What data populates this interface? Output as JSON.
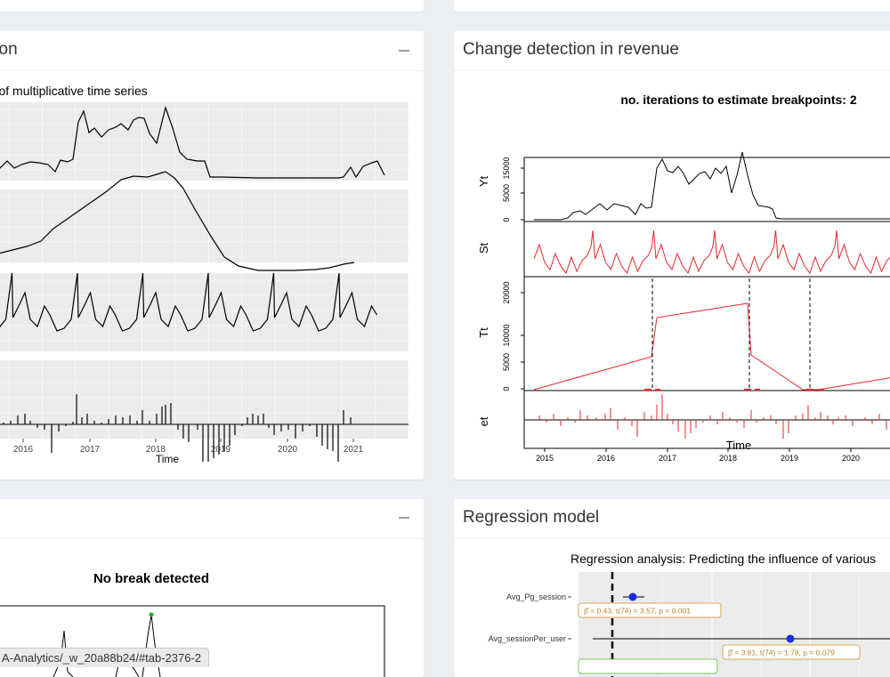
{
  "panels": {
    "decomposition": {
      "title": "Decomposition",
      "plot_title": "Decomposition of multiplicative time series",
      "x_label": "Time",
      "x_ticks": [
        "2016",
        "2017",
        "2018",
        "2019",
        "2020",
        "2021"
      ]
    },
    "change_detection": {
      "title": "Change detection in revenue",
      "plot_title": "no. iterations to estimate breakpoints: 2",
      "x_label": "Time",
      "x_ticks": [
        "2015",
        "2016",
        "2017",
        "2018",
        "2019",
        "2020"
      ],
      "rows": [
        {
          "label": "Yt",
          "ticks": [
            "0",
            "5000",
            "15000"
          ]
        },
        {
          "label": "St",
          "ticks": []
        },
        {
          "label": "Tt",
          "ticks": [
            "0",
            "5000",
            "10000",
            "20000"
          ]
        },
        {
          "label": "et",
          "ticks": []
        }
      ],
      "line_color": "#e8262c"
    },
    "break_panel": {
      "plot_title": "No break detected"
    },
    "regression": {
      "title": "Regression model",
      "plot_title": "Regression analysis: Predicting the influence of various",
      "terms": [
        {
          "name": "Avg_Pg_session",
          "label": "β̂ = 0.43,  t(74) = 3.57,  p = 0.001"
        },
        {
          "name": "Avg_sessionPer_user",
          "label": "β̂ = 3.81,  t(74) = 1.78,  p = 0.079"
        }
      ],
      "point_color": "#1a2ee8",
      "label_border": "#d4a94b"
    }
  },
  "status_bar": {
    "url": "A-Analytics/_w_20a88b24/#tab-2376-2"
  }
}
